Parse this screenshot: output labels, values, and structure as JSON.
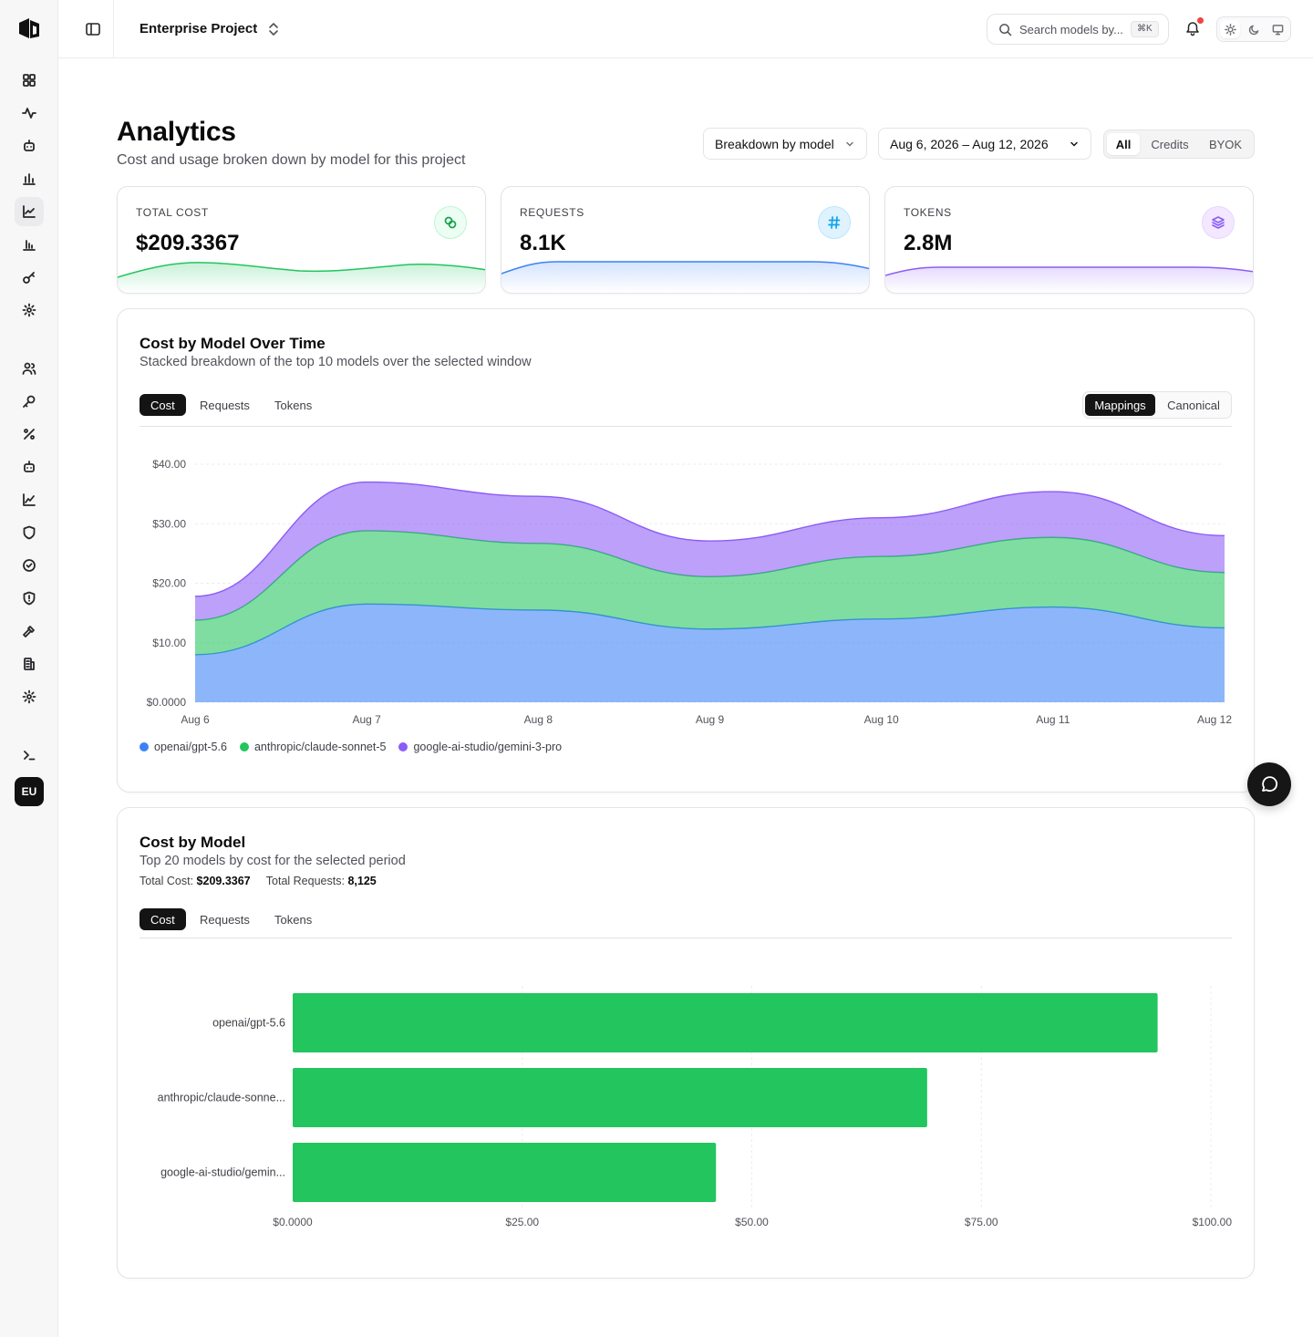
{
  "header": {
    "project_name": "Enterprise Project",
    "search_placeholder": "Search models by...",
    "search_shortcut": "⌘K"
  },
  "sidebar": {
    "items": [
      {
        "icon": "dashboard-icon"
      },
      {
        "icon": "activity-icon"
      },
      {
        "icon": "bot-icon"
      },
      {
        "icon": "bar-chart-icon"
      },
      {
        "icon": "line-chart-icon",
        "active": true
      },
      {
        "icon": "bar-chart-2-icon"
      },
      {
        "icon": "key-icon"
      },
      {
        "icon": "settings-icon"
      },
      {
        "icon": "users-icon"
      },
      {
        "icon": "key-round-icon"
      },
      {
        "icon": "percent-icon"
      },
      {
        "icon": "bot-2-icon"
      },
      {
        "icon": "trend-icon"
      },
      {
        "icon": "shield-icon"
      },
      {
        "icon": "check-circle-icon"
      },
      {
        "icon": "shield-alert-icon"
      },
      {
        "icon": "hammer-icon"
      },
      {
        "icon": "building-icon"
      },
      {
        "icon": "settings-2-icon"
      },
      {
        "icon": "terminal-icon"
      }
    ],
    "avatar": "EU"
  },
  "page": {
    "title": "Analytics",
    "subtitle": "Cost and usage broken down by model for this project",
    "breakdown_select": "Breakdown by model",
    "date_range": "Aug 6, 2026 – Aug 12, 2026",
    "source_filter": {
      "options": [
        "All",
        "Credits",
        "BYOK"
      ],
      "selected": "All"
    }
  },
  "stats": [
    {
      "label": "Total Cost",
      "value": "$209.3367",
      "icon": "coins-icon",
      "color": "#22c55e"
    },
    {
      "label": "Requests",
      "value": "8.1K",
      "icon": "hash-icon",
      "color": "#3b82f6"
    },
    {
      "label": "Tokens",
      "value": "2.8M",
      "icon": "layers-icon",
      "color": "#8b5cf6"
    }
  ],
  "cost_over_time": {
    "title": "Cost by Model Over Time",
    "subtitle": "Stacked breakdown of the top 10 models over the selected window",
    "tabs": [
      "Cost",
      "Requests",
      "Tokens"
    ],
    "active_tab": "Cost",
    "view_toggle": {
      "options": [
        "Mappings",
        "Canonical"
      ],
      "selected": "Mappings"
    }
  },
  "cost_by_model": {
    "title": "Cost by Model",
    "subtitle": "Top 20 models by cost for the selected period",
    "total_cost_label": "Total Cost:",
    "total_cost_value": "$209.3367",
    "total_requests_label": "Total Requests:",
    "total_requests_value": "8,125",
    "tabs": [
      "Cost",
      "Requests",
      "Tokens"
    ],
    "active_tab": "Cost"
  },
  "chart_data": [
    {
      "type": "area",
      "stacked": true,
      "x": [
        "Aug 6",
        "Aug 7",
        "Aug 8",
        "Aug 9",
        "Aug 10",
        "Aug 11",
        "Aug 12"
      ],
      "yticks": [
        "$0.0000",
        "$10.00",
        "$20.00",
        "$30.00",
        "$40.00"
      ],
      "ylim": [
        0,
        40
      ],
      "grid": true,
      "legend": "bottom-left",
      "series": [
        {
          "name": "openai/gpt-5.6",
          "color": "#3b82f6",
          "values": [
            8.0,
            16.5,
            15.5,
            12.3,
            14.0,
            16.0,
            12.5
          ]
        },
        {
          "name": "anthropic/claude-sonnet-5",
          "color": "#22c55e",
          "values": [
            5.8,
            12.3,
            11.2,
            8.8,
            10.5,
            11.7,
            9.3
          ]
        },
        {
          "name": "google-ai-studio/gemini-3-pro",
          "color": "#8b5cf6",
          "values": [
            4.0,
            8.2,
            7.9,
            6.0,
            6.5,
            7.7,
            6.2
          ]
        }
      ]
    },
    {
      "type": "bar",
      "orientation": "horizontal",
      "categories": [
        "openai/gpt-5.6",
        "anthropic/claude-sonne...",
        "google-ai-studio/gemin..."
      ],
      "values": [
        94.2,
        69.1,
        46.1
      ],
      "xticks": [
        "$0.0000",
        "$25.00",
        "$50.00",
        "$75.00",
        "$100.00"
      ],
      "xlim": [
        0,
        100
      ],
      "color": "#22c55e",
      "grid": true
    }
  ]
}
